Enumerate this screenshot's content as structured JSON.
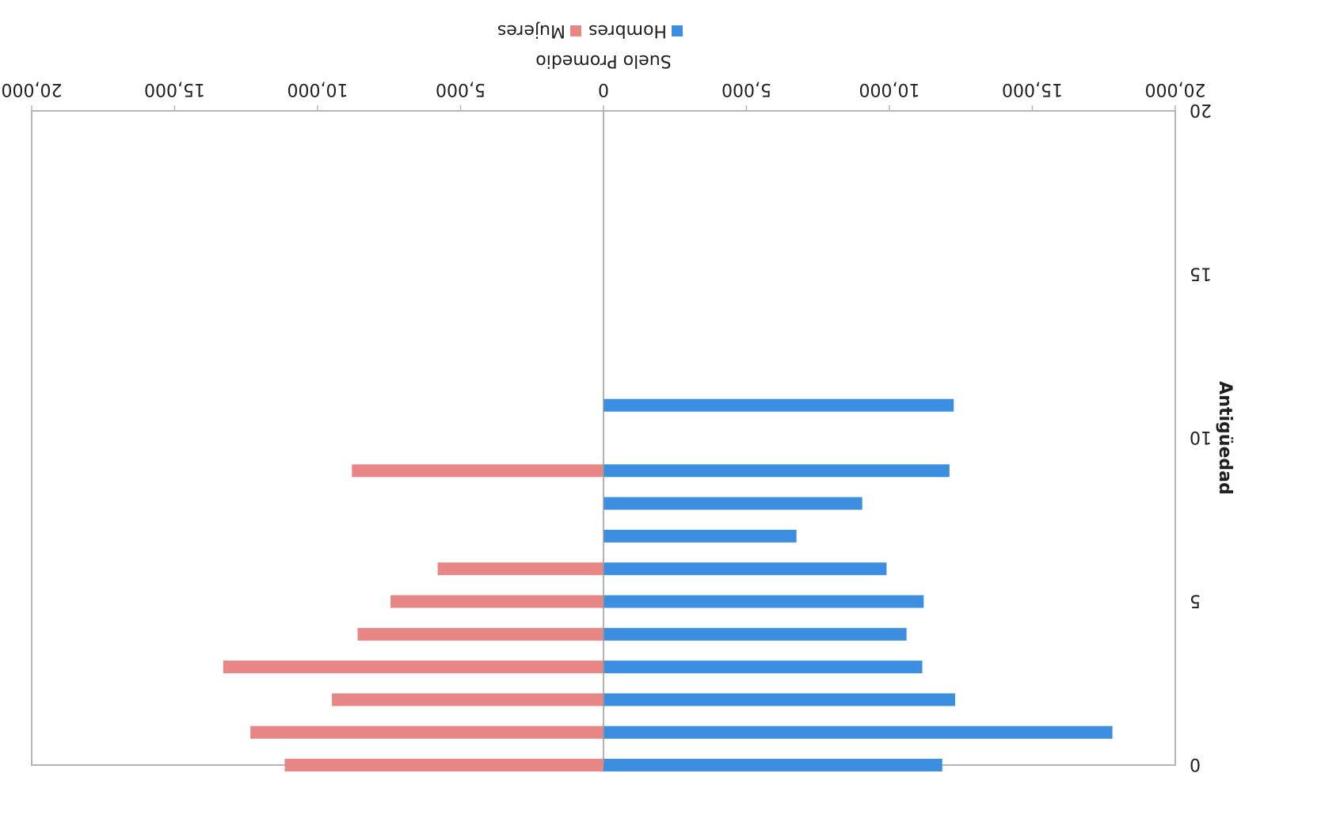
{
  "chart_data": {
    "type": "bar",
    "orientation": "horizontal-diverging",
    "rendering": "scanned page, rotated 180 degrees",
    "xlabel": "Suelo Promedio",
    "ylabel": "Antigüedad",
    "x_ticks": [
      "20,000",
      "15,000",
      "10,000",
      "5,000",
      "0",
      "5,000",
      "10,000",
      "15,000",
      "20,000"
    ],
    "y_ticks": [
      "0",
      "5",
      "10",
      "15",
      "20"
    ],
    "xlim": [
      -20000,
      20000
    ],
    "ylim": [
      0,
      20
    ],
    "legend": {
      "position": "top",
      "entries": [
        {
          "name": "Hombres",
          "color": "#3b8ee0"
        },
        {
          "name": "Mujeres",
          "color": "#e88585"
        }
      ]
    },
    "series": [
      {
        "name": "Hombres",
        "color": "#3b8ee0",
        "x": [
          0,
          1,
          2,
          3,
          4,
          5,
          6,
          7,
          8,
          9,
          11
        ],
        "values": [
          11850,
          17800,
          12300,
          11150,
          10600,
          11200,
          9900,
          6750,
          9050,
          12100,
          12250
        ]
      },
      {
        "name": "Mujeres",
        "color": "#e88585",
        "x": [
          0,
          1,
          2,
          3,
          4,
          5,
          6,
          9
        ],
        "values": [
          11150,
          12350,
          9500,
          13300,
          8600,
          7450,
          5800,
          8800
        ]
      }
    ],
    "grid": false,
    "frame_color": "#b5b5b5",
    "zero_line_color": "#999999"
  }
}
